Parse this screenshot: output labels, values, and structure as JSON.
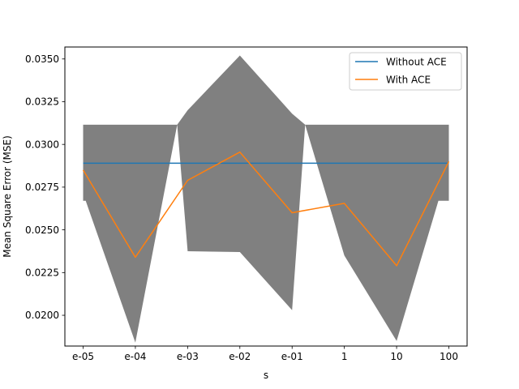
{
  "chart_data": {
    "type": "line",
    "xlabel": "s",
    "ylabel": "Mean Square Error (MSE)",
    "categories": [
      "e-05",
      "e-04",
      "e-03",
      "e-02",
      "e-01",
      "1",
      "10",
      "100"
    ],
    "y_ticks": [
      "0.0200",
      "0.0225",
      "0.0250",
      "0.0275",
      "0.0300",
      "0.0325",
      "0.0350"
    ],
    "ylim": [
      0.0182,
      0.0357
    ],
    "grid": false,
    "legend_position": "top-right",
    "series": [
      {
        "name": "Without ACE",
        "color": "#1f77b4",
        "values": [
          0.0289,
          0.0289,
          0.0289,
          0.0289,
          0.0289,
          0.0289,
          0.0289,
          0.0289
        ]
      },
      {
        "name": "With ACE",
        "color": "#ff7f0e",
        "values": [
          0.0285,
          0.0234,
          0.0279,
          0.02955,
          0.026,
          0.02655,
          0.0229,
          0.029
        ]
      }
    ],
    "bands": [
      {
        "color": "#808080",
        "points": [
          {
            "x": 0,
            "lower": 0.0267,
            "upper": 0.03115
          },
          {
            "x": 0.05,
            "lower": 0.0267,
            "upper": 0.03115
          },
          {
            "x": 1,
            "lower": 0.0184,
            "upper": 0.03115
          },
          {
            "x": 1.8,
            "lower": 0.03115,
            "upper": 0.03115
          },
          {
            "x": 2,
            "lower": 0.02375,
            "upper": 0.032
          },
          {
            "x": 3,
            "lower": 0.0237,
            "upper": 0.0352
          },
          {
            "x": 4,
            "lower": 0.0203,
            "upper": 0.0318
          },
          {
            "x": 4.25,
            "lower": 0.03115,
            "upper": 0.03115
          },
          {
            "x": 5,
            "lower": 0.0235,
            "upper": 0.03115
          },
          {
            "x": 6,
            "lower": 0.0185,
            "upper": 0.03115
          },
          {
            "x": 6.8,
            "lower": 0.0267,
            "upper": 0.03115
          },
          {
            "x": 7,
            "lower": 0.0267,
            "upper": 0.03115
          }
        ]
      }
    ]
  }
}
